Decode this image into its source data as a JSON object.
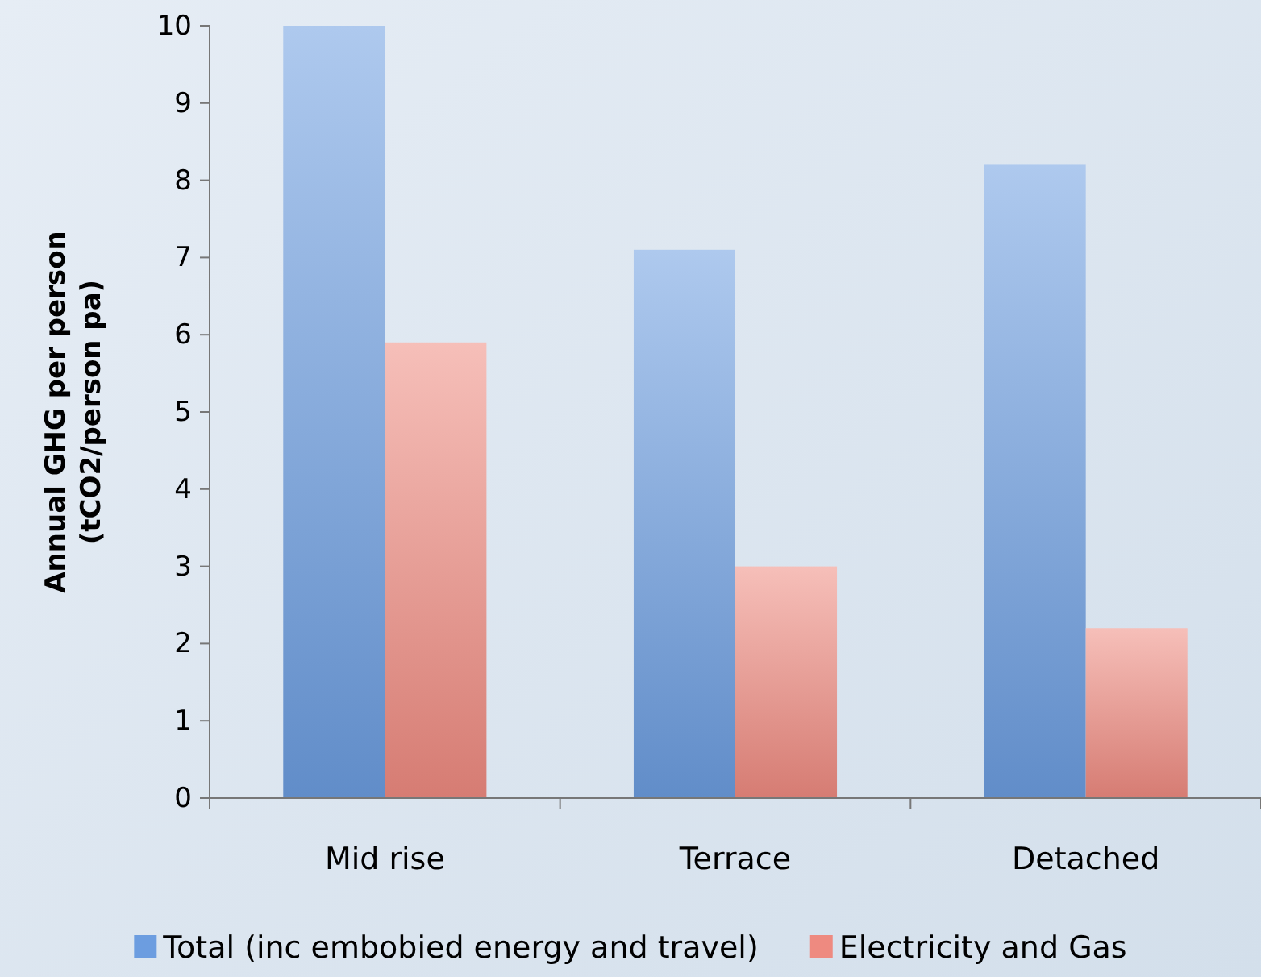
{
  "chart_data": {
    "type": "bar",
    "ylabel": "Annual GHG per person\n(tCO2/person pa)",
    "categories": [
      "Mid rise",
      "Terrace",
      "Detached"
    ],
    "series": [
      {
        "name": "Total (inc embobied energy and travel)",
        "color": "#6c9de0",
        "values": [
          10,
          7.1,
          8.2
        ]
      },
      {
        "name": "Electricity and Gas",
        "color": "#ee8a80",
        "values": [
          5.9,
          3.0,
          2.2
        ]
      }
    ],
    "ylim": [
      0,
      10
    ],
    "yticks": [
      0,
      1,
      2,
      3,
      4,
      5,
      6,
      7,
      8,
      9,
      10
    ],
    "grid": false,
    "legend": "bottom"
  }
}
